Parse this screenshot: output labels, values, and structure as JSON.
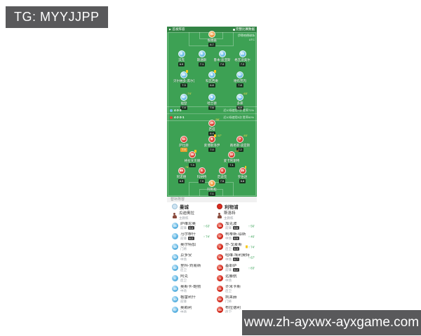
{
  "banners": {
    "tg": "TG: MYYJJPP",
    "url": "www.zh-ayxwx-ayxgame.com"
  },
  "pitch": {
    "topbar": {
      "left": "首发阵容",
      "right": "完整比赛数据"
    },
    "venue": {
      "line1": "伊蒂哈德球场",
      "line2": "UTC"
    },
    "home": {
      "name": "曼城",
      "formation": "4-3-3",
      "formation_note": "近10场使用7次 胜率71%",
      "color": "#74c2e8",
      "rows": [
        [
          {
            "num": "31",
            "name": "埃德森",
            "rating": "6.7",
            "gk": true
          }
        ],
        [
          {
            "num": "2",
            "name": "沃克",
            "rating": "6.9"
          },
          {
            "num": "5",
            "name": "斯通斯",
            "rating": "7.1"
          },
          {
            "num": "3",
            "name": "鲁本-迪亚斯",
            "rating": "7.0"
          },
          {
            "num": "24",
            "name": "格瓦迪奥尔",
            "rating": "7.2"
          }
        ],
        [
          {
            "num": "20",
            "name": "贝尔纳多-席尔瓦",
            "rating": "7.3",
            "yc": true
          },
          {
            "num": "8",
            "name": "科瓦西奇",
            "rating": "6.8",
            "yc": true
          },
          {
            "num": "17",
            "name": "德布劳内",
            "rating": "7.8"
          }
        ],
        [
          {
            "num": "47",
            "name": "福登",
            "rating": "7.4",
            "off": "74'"
          },
          {
            "num": "9",
            "name": "哈兰德",
            "rating": "7.6"
          },
          {
            "num": "11",
            "name": "多库",
            "rating": "6.9",
            "off": "63'"
          }
        ]
      ]
    },
    "away": {
      "name": "利物浦",
      "formation": "4-2-3-1",
      "formation_note": "近10场使用5次 胜率60%",
      "color": "#dd4436",
      "rows": [
        [
          {
            "num": "20",
            "name": "若塔",
            "rating": "6.4",
            "off": "56'"
          }
        ],
        [
          {
            "num": "11",
            "name": "萨拉赫",
            "rating": "7.9",
            "motm": true
          },
          {
            "num": "8",
            "name": "索博斯洛伊",
            "rating": "7.0",
            "yc": true,
            "off": "67'"
          },
          {
            "num": "7",
            "name": "路易斯-迪亚斯",
            "rating": "7.2",
            "off": "83'"
          }
        ],
        [
          {
            "num": "38",
            "name": "格拉文贝赫",
            "rating": "7.3",
            "yc": true
          },
          {
            "num": "10",
            "name": "麦卡利斯特",
            "rating": "7.1",
            "off": "46'"
          }
        ],
        [
          {
            "num": "66",
            "name": "阿诺德",
            "rating": "6.9",
            "off": "74'"
          },
          {
            "num": "5",
            "name": "科纳特",
            "rating": "7.0"
          },
          {
            "num": "4",
            "name": "范迪克",
            "rating": "7.5"
          },
          {
            "num": "26",
            "name": "罗伯逊",
            "rating": "6.8",
            "yc": true
          }
        ],
        [
          {
            "num": "1",
            "name": "阿利松",
            "rating": "7.1",
            "gk": true
          }
        ]
      ]
    }
  },
  "bench": {
    "title": "替补阵容",
    "home_name": "曼城",
    "away_name": "利物浦",
    "home_coach": "瓜迪奥拉",
    "away_coach": "斯洛特",
    "coach_label": "主教练",
    "home_players": [
      {
        "num": "26",
        "name": "萨维尼奥",
        "pos": "前锋",
        "rating": "6.4",
        "on": "63'"
      },
      {
        "num": "7",
        "name": "马尔穆什",
        "pos": "前锋",
        "rating": "6.2",
        "on": "74'"
      },
      {
        "num": "18",
        "name": "奥尔特加",
        "pos": "门将"
      },
      {
        "num": "19",
        "name": "京多安",
        "pos": "中场"
      },
      {
        "num": "82",
        "name": "里科-刘易斯",
        "pos": "后卫"
      },
      {
        "num": "6",
        "name": "阿克",
        "pos": "后卫"
      },
      {
        "num": "45",
        "name": "奥斯卡-鲍勃",
        "pos": "中场"
      },
      {
        "num": "10",
        "name": "格雷利什",
        "pos": "前锋"
      },
      {
        "num": "97",
        "name": "奥赖利",
        "pos": "中场"
      }
    ],
    "away_players": [
      {
        "num": "18",
        "name": "加克波",
        "pos": "前锋",
        "rating": "6.6",
        "on": "56'"
      },
      {
        "num": "17",
        "name": "柯蒂斯-琼斯",
        "pos": "中场",
        "rating": "6.5",
        "on": "46'"
      },
      {
        "num": "2",
        "name": "乔-戈麦斯",
        "pos": "后卫",
        "rating": "6.3",
        "yc": true,
        "on": "74'"
      },
      {
        "num": "19",
        "name": "哈维-埃利奥特",
        "pos": "中场",
        "rating": "6.7",
        "on": "67'"
      },
      {
        "num": "14",
        "name": "基耶萨",
        "pos": "前锋",
        "rating": "6.2",
        "on": "83'"
      },
      {
        "num": "3",
        "name": "远藤航",
        "pos": "中场"
      },
      {
        "num": "21",
        "name": "齐米卡斯",
        "pos": "后卫"
      },
      {
        "num": "62",
        "name": "凯莱赫",
        "pos": "门将"
      },
      {
        "num": "84",
        "name": "布拉德利",
        "pos": "后卫"
      }
    ]
  }
}
